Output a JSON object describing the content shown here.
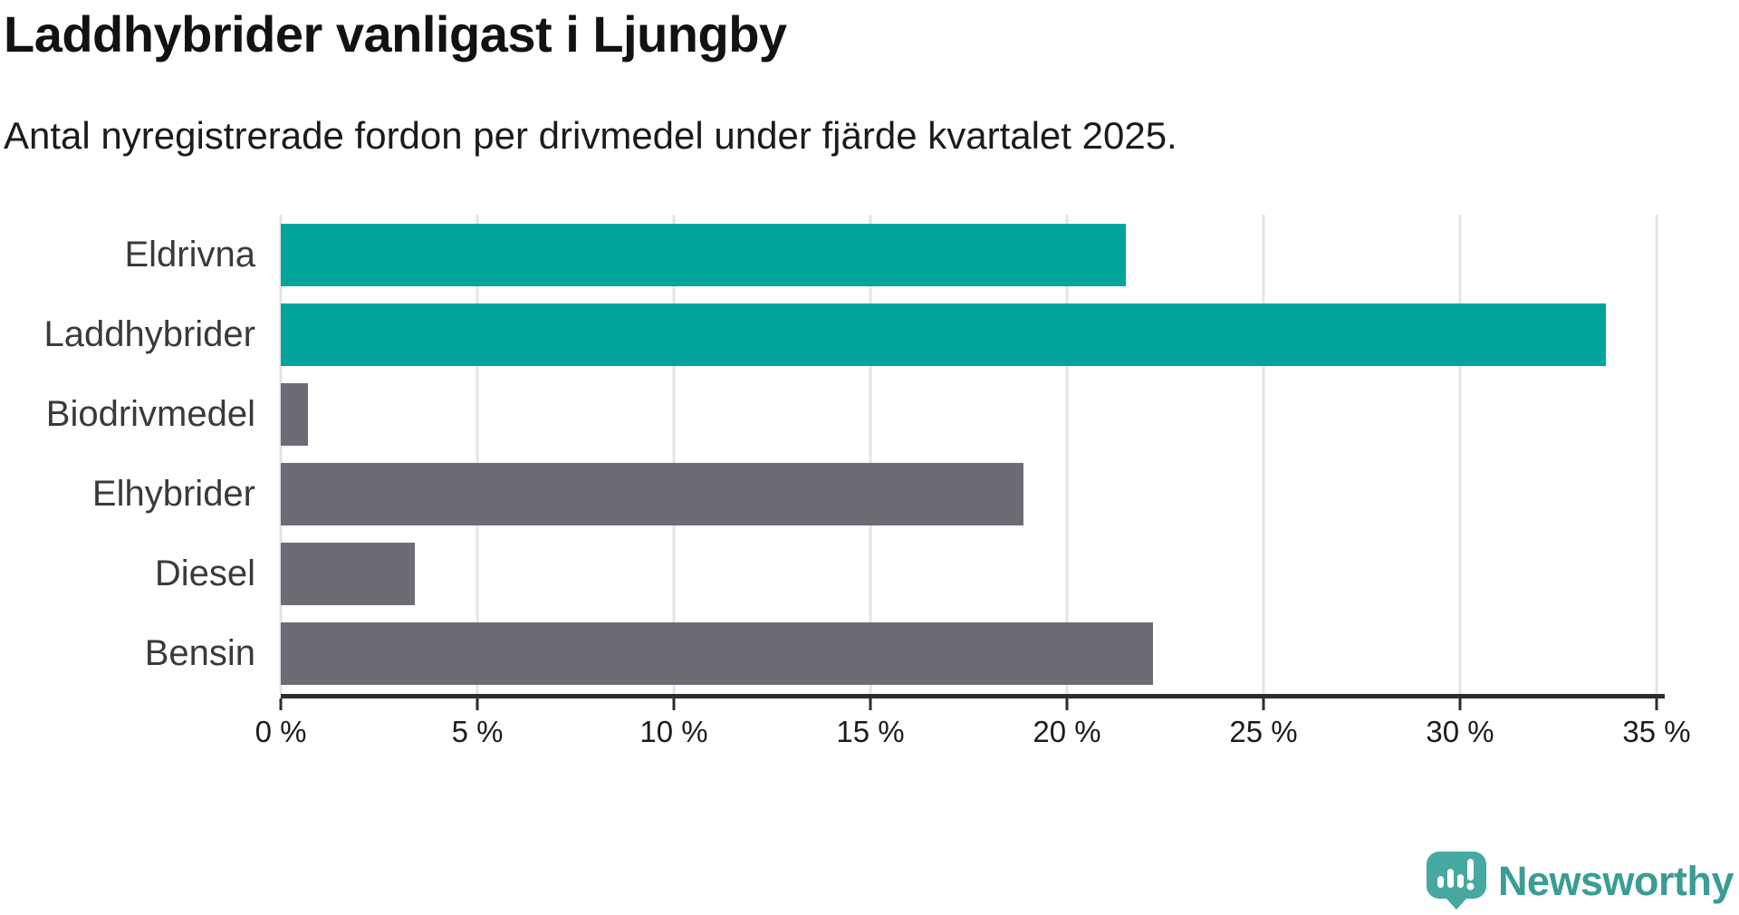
{
  "title": "Laddhybrider vanligast i Ljungby",
  "subtitle": "Antal nyregistrerade fordon per drivmedel under fjärde kvartalet 2025.",
  "chart_data": {
    "type": "bar",
    "orientation": "horizontal",
    "title": "Laddhybrider vanligast i Ljungby",
    "subtitle": "Antal nyregistrerade fordon per drivmedel under fjärde kvartalet 2025.",
    "categories": [
      "Eldrivna",
      "Laddhybrider",
      "Biodrivmedel",
      "Elhybrider",
      "Diesel",
      "Bensin"
    ],
    "values": [
      21.5,
      33.7,
      0.7,
      18.9,
      3.4,
      22.2
    ],
    "unit": "%",
    "xlim": [
      0,
      35
    ],
    "x_ticks": [
      0,
      5,
      10,
      15,
      20,
      25,
      30,
      35
    ],
    "x_tick_labels": [
      "0 %",
      "5 %",
      "10 %",
      "15 %",
      "20 %",
      "25 %",
      "30 %",
      "35 %"
    ],
    "bar_colors": [
      "#00a49c",
      "#00a49c",
      "#6c6c75",
      "#6c6c75",
      "#6c6c75",
      "#6c6c75"
    ],
    "grid": true,
    "gridline_color": "#e4e4e4",
    "axis_color": "#2d2d2d",
    "highlight_color": "#00a49c",
    "base_color": "#6c6c75",
    "legend": "none"
  },
  "branding": {
    "logo_text": "Newsworthy",
    "logo_text_color": "#3b9c96",
    "icon_color": "#47a8a1",
    "icon_name": "newsworthy-speech-bubble-chart-icon"
  }
}
